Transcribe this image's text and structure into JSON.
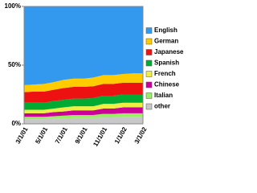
{
  "chart_data": {
    "type": "stacked-area",
    "categories": [
      "3/1/01",
      null,
      "5/1/01",
      null,
      "7/1/01",
      null,
      "9/1/01",
      null,
      "11/1/01",
      null,
      "1/1/02",
      null,
      "3/1/02"
    ],
    "series": [
      {
        "name": "other",
        "color": "#c8c8c8",
        "values": [
          4,
          4,
          4,
          4.5,
          4.5,
          5,
          5,
          5,
          5.5,
          5.5,
          6,
          6,
          6
        ]
      },
      {
        "name": "Italian",
        "color": "#99ee66",
        "values": [
          2,
          2,
          2,
          2,
          2.5,
          2.5,
          2.5,
          2.5,
          3,
          3,
          3,
          3,
          3
        ]
      },
      {
        "name": "Chinese",
        "color": "#cc0099",
        "values": [
          3,
          3,
          3,
          3.5,
          3.5,
          4,
          4,
          4,
          4.5,
          4.5,
          5,
          5,
          5
        ]
      },
      {
        "name": "French",
        "color": "#eeee44",
        "values": [
          3,
          3,
          3,
          3,
          3.5,
          3.5,
          3.5,
          3.5,
          4,
          4,
          4,
          4,
          4
        ]
      },
      {
        "name": "Spanish",
        "color": "#00aa33",
        "values": [
          6,
          6,
          6,
          6.5,
          6.5,
          6.5,
          6.5,
          7,
          7,
          7,
          7,
          7,
          7
        ]
      },
      {
        "name": "Japanese",
        "color": "#ee1111",
        "values": [
          9,
          9.5,
          9.5,
          9.5,
          10,
          10,
          10,
          10,
          10,
          10,
          10,
          10,
          10
        ]
      },
      {
        "name": "German",
        "color": "#ffcc00",
        "values": [
          6,
          6,
          6.5,
          6.5,
          7,
          7,
          7,
          7.5,
          7.5,
          7.5,
          7.5,
          8,
          8
        ]
      },
      {
        "name": "English",
        "color": "#3399ee",
        "values": [
          67,
          66.5,
          66,
          64.5,
          62.5,
          61.5,
          61.5,
          60.5,
          58.5,
          58.5,
          57.5,
          57,
          57
        ]
      }
    ],
    "ylim": [
      0,
      100
    ],
    "yticks": [
      {
        "value": 0,
        "label": "0%"
      },
      {
        "value": 50,
        "label": "50%"
      },
      {
        "value": 100,
        "label": "100%"
      }
    ],
    "legend": "right"
  }
}
